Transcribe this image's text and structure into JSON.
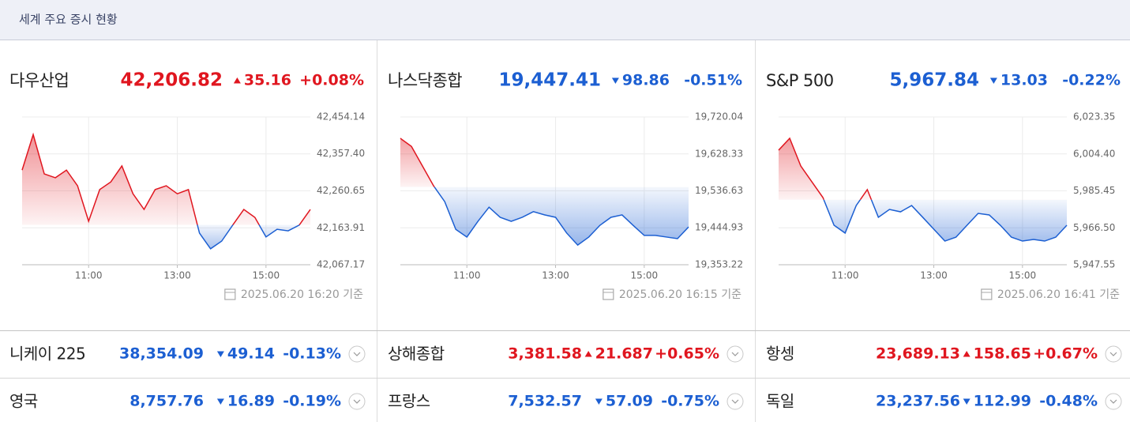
{
  "header": {
    "title": "세계 주요 증시 현황"
  },
  "colors": {
    "up": "#e0161f",
    "down": "#1c5fd2"
  },
  "panels": [
    {
      "name": "다우산업",
      "price": "42,206.82",
      "change": "35.16",
      "change_pct": "+0.08%",
      "direction": "up",
      "updated": "2025.06.20 16:20 기준"
    },
    {
      "name": "나스닥종합",
      "price": "19,447.41",
      "change": "98.86",
      "change_pct": "-0.51%",
      "direction": "down",
      "updated": "2025.06.20 16:15 기준"
    },
    {
      "name": "S&P 500",
      "price": "5,967.84",
      "change": "13.03",
      "change_pct": "-0.22%",
      "direction": "down",
      "updated": "2025.06.20 16:41 기준"
    }
  ],
  "chart_data": [
    {
      "type": "line",
      "x": [
        9.5,
        9.75,
        10,
        10.25,
        10.5,
        10.75,
        11,
        11.25,
        11.5,
        11.75,
        12,
        12.25,
        12.5,
        12.75,
        13,
        13.25,
        13.5,
        13.75,
        14,
        14.25,
        14.5,
        14.75,
        15,
        15.25,
        15.5,
        15.75,
        16
      ],
      "values": [
        42315,
        42408,
        42305,
        42295,
        42315,
        42274,
        42181,
        42264,
        42284,
        42326,
        42253,
        42212,
        42264,
        42274,
        42253,
        42264,
        42150,
        42109,
        42129,
        42171,
        42212,
        42191,
        42140,
        42160,
        42156,
        42171,
        42212
      ],
      "xlim": [
        9.5,
        16
      ],
      "xticks": [
        {
          "value": 11,
          "label": "11:00"
        },
        {
          "value": 13,
          "label": "13:00"
        },
        {
          "value": 15,
          "label": "15:00"
        }
      ],
      "ylim": [
        42067.17,
        42454.14
      ],
      "yticks": [
        {
          "value": 42067.17,
          "label": "42,067.17"
        },
        {
          "value": 42163.91,
          "label": "42,163.91"
        },
        {
          "value": 42260.65,
          "label": "42,260.65"
        },
        {
          "value": 42357.4,
          "label": "42,357.40"
        },
        {
          "value": 42454.14,
          "label": "42,454.14"
        }
      ],
      "baseline": 42171.66,
      "grid": true
    },
    {
      "type": "line",
      "x": [
        9.5,
        9.75,
        10,
        10.25,
        10.5,
        10.75,
        11,
        11.25,
        11.5,
        11.75,
        12,
        12.25,
        12.5,
        12.75,
        13,
        13.25,
        13.5,
        13.75,
        14,
        14.25,
        14.5,
        14.75,
        15,
        15.25,
        15.5,
        15.75,
        16
      ],
      "values": [
        19667,
        19647,
        19598,
        19549,
        19510,
        19441,
        19422,
        19461,
        19496,
        19471,
        19461,
        19471,
        19485,
        19477,
        19471,
        19432,
        19402,
        19422,
        19451,
        19471,
        19477,
        19451,
        19426,
        19426,
        19422,
        19418,
        19447
      ],
      "xlim": [
        9.5,
        16
      ],
      "xticks": [
        {
          "value": 11,
          "label": "11:00"
        },
        {
          "value": 13,
          "label": "13:00"
        },
        {
          "value": 15,
          "label": "15:00"
        }
      ],
      "ylim": [
        19353.22,
        19720.04
      ],
      "yticks": [
        {
          "value": 19353.22,
          "label": "19,353.22"
        },
        {
          "value": 19444.93,
          "label": "19,444.93"
        },
        {
          "value": 19536.63,
          "label": "19,536.63"
        },
        {
          "value": 19628.33,
          "label": "19,628.33"
        },
        {
          "value": 19720.04,
          "label": "19,720.04"
        }
      ],
      "baseline": 19546.27,
      "grid": true
    },
    {
      "type": "line",
      "x": [
        9.5,
        9.75,
        10,
        10.25,
        10.5,
        10.75,
        11,
        11.25,
        11.5,
        11.75,
        12,
        12.25,
        12.5,
        12.75,
        13,
        13.25,
        13.5,
        13.75,
        14,
        14.25,
        14.5,
        14.75,
        15,
        15.25,
        15.5,
        15.75,
        16
      ],
      "values": [
        6006.3,
        6012.4,
        5998.2,
        5990.1,
        5982.0,
        5967.8,
        5963.8,
        5977.9,
        5986.1,
        5971.9,
        5975.9,
        5974.7,
        5977.9,
        5971.9,
        5965.8,
        5959.7,
        5961.7,
        5967.8,
        5973.9,
        5973.1,
        5967.8,
        5961.7,
        5959.7,
        5960.5,
        5959.7,
        5961.7,
        5967.8
      ],
      "xlim": [
        9.5,
        16
      ],
      "xticks": [
        {
          "value": 11,
          "label": "11:00"
        },
        {
          "value": 13,
          "label": "13:00"
        },
        {
          "value": 15,
          "label": "15:00"
        }
      ],
      "ylim": [
        5947.55,
        6023.35
      ],
      "yticks": [
        {
          "value": 5947.55,
          "label": "5,947.55"
        },
        {
          "value": 5966.5,
          "label": "5,966.50"
        },
        {
          "value": 5985.45,
          "label": "5,985.45"
        },
        {
          "value": 6004.4,
          "label": "6,004.40"
        },
        {
          "value": 6023.35,
          "label": "6,023.35"
        }
      ],
      "baseline": 5980.87,
      "grid": true
    }
  ],
  "rows": [
    [
      {
        "name": "니케이 225",
        "price": "38,354.09",
        "change": "49.14",
        "change_pct": "-0.13%",
        "direction": "down"
      },
      {
        "name": "상해종합",
        "price": "3,381.58",
        "change": "21.687",
        "change_pct": "+0.65%",
        "direction": "up"
      },
      {
        "name": "항셍",
        "price": "23,689.13",
        "change": "158.65",
        "change_pct": "+0.67%",
        "direction": "up"
      }
    ],
    [
      {
        "name": "영국",
        "price": "8,757.76",
        "change": "16.89",
        "change_pct": "-0.19%",
        "direction": "down"
      },
      {
        "name": "프랑스",
        "price": "7,532.57",
        "change": "57.09",
        "change_pct": "-0.75%",
        "direction": "down"
      },
      {
        "name": "독일",
        "price": "23,237.56",
        "change": "112.99",
        "change_pct": "-0.48%",
        "direction": "down"
      }
    ]
  ]
}
